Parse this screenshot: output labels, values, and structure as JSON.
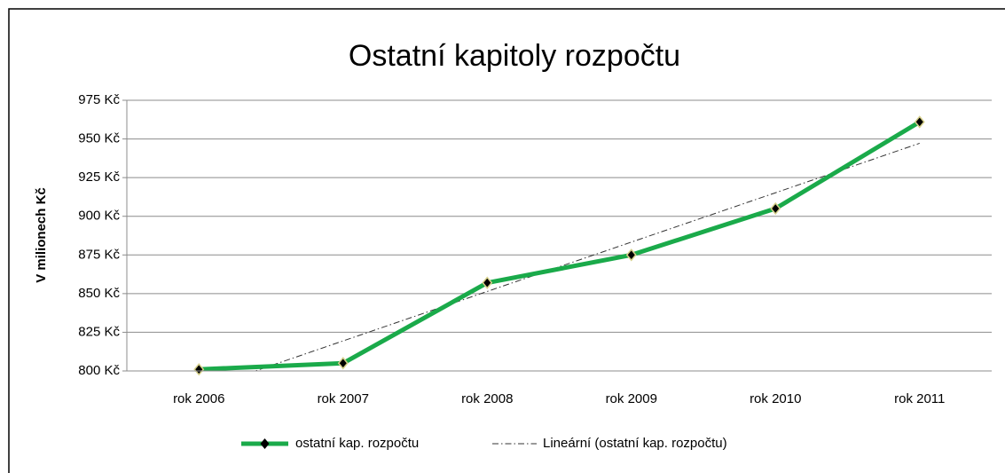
{
  "chart_data": {
    "type": "line",
    "title": "Ostatní kapitoly rozpočtu",
    "y_label": "V milionech Kč",
    "categories": [
      "rok 2006",
      "rok 2007",
      "rok 2008",
      "rok 2009",
      "rok 2010",
      "rok 2011"
    ],
    "series": [
      {
        "name": "ostatní kap. rozpočtu",
        "color": "#1aaa4a",
        "values": [
          801,
          805,
          857,
          875,
          905,
          961
        ]
      },
      {
        "name": "Lineární (ostatní kap. rozpočtu)",
        "color": "#333333",
        "dash": "dashdot",
        "values": [
          787.5,
          819.4,
          851.4,
          883.3,
          915.2,
          947.2
        ]
      }
    ],
    "ylim": [
      800,
      975
    ],
    "yticks": [
      {
        "value": 800,
        "label": "800 Kč"
      },
      {
        "value": 825,
        "label": "825 Kč"
      },
      {
        "value": 850,
        "label": "850 Kč"
      },
      {
        "value": 875,
        "label": "875 Kč"
      },
      {
        "value": 900,
        "label": "900 Kč"
      },
      {
        "value": 925,
        "label": "925 Kč"
      },
      {
        "value": 950,
        "label": "950 Kč"
      },
      {
        "value": 975,
        "label": "975 Kč"
      }
    ],
    "grid": true,
    "legend": "bottom"
  }
}
